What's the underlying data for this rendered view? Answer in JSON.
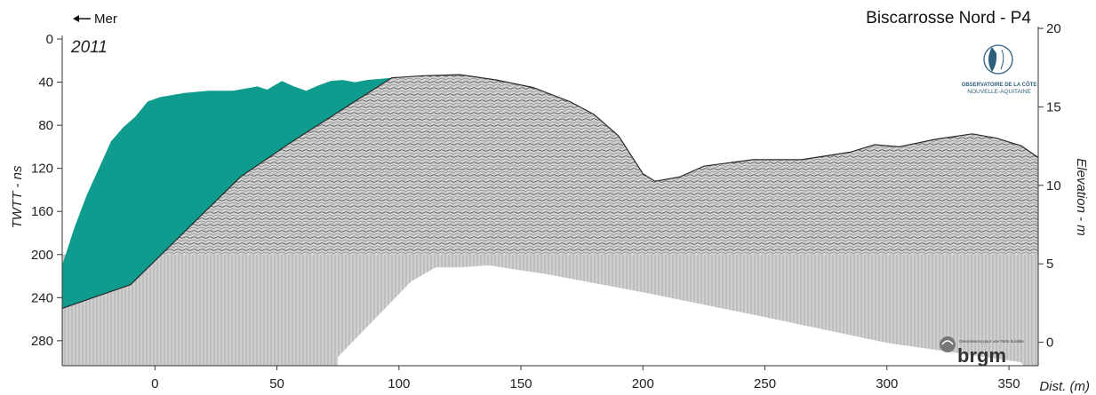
{
  "chart_data": {
    "type": "area",
    "title": "Biscarrosse Nord - P4",
    "year_label": "2011",
    "direction_label": "Mer",
    "xlabel": "Dist. (m)",
    "ylabel_left": "TWTT - ns",
    "ylabel_right": "Elevation - m",
    "xlim": [
      -38,
      362
    ],
    "ylim_left": [
      0,
      290
    ],
    "ylim_right": [
      -0.7,
      20
    ],
    "x_ticks": [
      0,
      50,
      100,
      150,
      200,
      250,
      300,
      350
    ],
    "y_ticks_left": [
      0,
      40,
      80,
      120,
      160,
      200,
      240,
      280
    ],
    "y_ticks_right": [
      0,
      5,
      10,
      15,
      20
    ],
    "colors": {
      "dune_fill": "#0f9b8e",
      "radargram_base": "#c9c9c9",
      "axis": "#333333"
    },
    "series": [
      {
        "role": "dune_surface_twtt",
        "x": [
          -38,
          -33,
          -28,
          -23,
          -18,
          -13,
          -8,
          -3,
          2,
          12,
          22,
          32,
          42,
          46,
          52,
          57,
          62,
          67,
          72,
          77,
          82,
          87,
          92,
          97
        ],
        "y": [
          210,
          175,
          145,
          120,
          95,
          82,
          72,
          58,
          54,
          50,
          48,
          48,
          44,
          47,
          39,
          44,
          48,
          43,
          39,
          38,
          40,
          38,
          37,
          36
        ]
      },
      {
        "role": "radar_surface_twtt",
        "x": [
          -38,
          -10,
          35,
          55,
          75,
          97,
          110,
          125,
          140,
          155,
          170,
          180,
          190,
          200,
          205,
          215,
          225,
          245,
          265,
          285,
          295,
          305,
          320,
          335,
          345,
          355,
          362
        ],
        "y": [
          250,
          228,
          128,
          97,
          68,
          36,
          34,
          33,
          38,
          45,
          58,
          70,
          90,
          125,
          132,
          128,
          118,
          112,
          112,
          105,
          98,
          100,
          93,
          88,
          92,
          99,
          110
        ]
      },
      {
        "role": "no_data_lower_boundary_twtt",
        "x": [
          75,
          90,
          105,
          115,
          125,
          137,
          145,
          160,
          200,
          250,
          300,
          355
        ],
        "y": [
          295,
          260,
          225,
          212,
          212,
          210,
          213,
          218,
          235,
          258,
          282,
          300
        ]
      }
    ],
    "grid": false,
    "legend": "none"
  },
  "logos": {
    "observatoire_line1": "OBSERVATOIRE DE LA CÔTE",
    "observatoire_line2": "NOUVELLE-AQUITAINE",
    "brgm_name": "brgm",
    "brgm_tagline": "Géosciences pour une Terre durable"
  }
}
